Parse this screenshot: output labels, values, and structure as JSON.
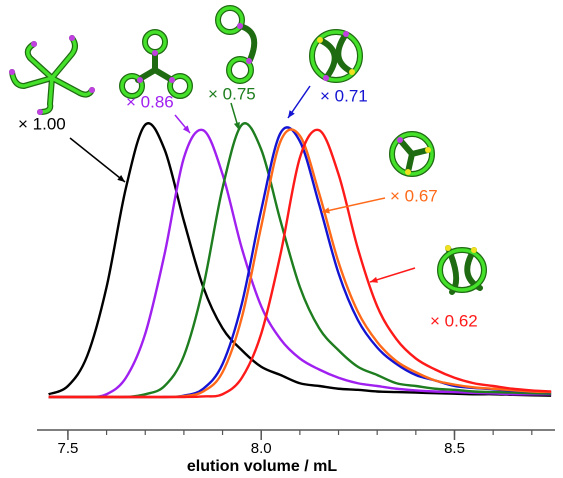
{
  "chart_data": {
    "type": "line",
    "x_label": "elution volume / mL",
    "x": [
      7.45,
      7.5,
      7.55,
      7.6,
      7.65,
      7.7,
      7.75,
      7.8,
      7.85,
      7.9,
      7.95,
      8.0,
      8.05,
      8.1,
      8.15,
      8.2,
      8.25,
      8.3,
      8.35,
      8.4,
      8.45,
      8.5,
      8.55,
      8.6,
      8.65,
      8.7,
      8.75
    ],
    "xlim": [
      7.42,
      8.76
    ],
    "xticks": [
      7.5,
      {
        "value": 8,
        "label": "8.0"
      },
      8.5
    ],
    "xminorticks": [
      7.5,
      7.6,
      7.7,
      7.8,
      7.9,
      8.0,
      8.1,
      8.2,
      8.3,
      8.4,
      8.5,
      8.6,
      8.7
    ],
    "ylim": [
      0,
      1
    ],
    "series": [
      {
        "name": "× 1.00",
        "color": "#000000",
        "values": [
          0.01,
          0.04,
          0.15,
          0.4,
          0.76,
          0.99,
          0.9,
          0.64,
          0.4,
          0.25,
          0.17,
          0.11,
          0.08,
          0.05,
          0.04,
          0.03,
          0.026,
          0.02,
          0.018,
          0.016,
          0.014,
          0.012,
          0.01,
          0.01,
          0.008,
          0.006,
          0.005
        ]
      },
      {
        "name": "× 0.86",
        "color": "#a020f0",
        "values": [
          0,
          0,
          0,
          0.01,
          0.07,
          0.23,
          0.52,
          0.87,
          0.97,
          0.81,
          0.54,
          0.33,
          0.21,
          0.14,
          0.1,
          0.07,
          0.05,
          0.04,
          0.03,
          0.024,
          0.02,
          0.018,
          0.015,
          0.013,
          0.01,
          0.01,
          0.01
        ]
      },
      {
        "name": "× 0.75",
        "color": "#1e7d1e",
        "values": [
          0,
          0,
          0,
          0,
          0,
          0.01,
          0.04,
          0.15,
          0.4,
          0.76,
          0.99,
          0.9,
          0.64,
          0.4,
          0.25,
          0.17,
          0.11,
          0.08,
          0.05,
          0.04,
          0.03,
          0.026,
          0.02,
          0.018,
          0.016,
          0.014,
          0.012
        ]
      },
      {
        "name": "× 0.71",
        "color": "#1414d2",
        "values": [
          0,
          0,
          0,
          0,
          0,
          0,
          0,
          0.005,
          0.03,
          0.12,
          0.34,
          0.68,
          0.96,
          0.93,
          0.7,
          0.45,
          0.28,
          0.18,
          0.12,
          0.08,
          0.06,
          0.04,
          0.033,
          0.028,
          0.023,
          0.02,
          0.017
        ]
      },
      {
        "name": "× 0.67",
        "color": "#ff6a1a",
        "values": [
          0,
          0,
          0,
          0,
          0,
          0,
          0,
          0.003,
          0.02,
          0.09,
          0.29,
          0.62,
          0.93,
          0.95,
          0.74,
          0.49,
          0.31,
          0.2,
          0.13,
          0.09,
          0.06,
          0.045,
          0.035,
          0.03,
          0.025,
          0.02,
          0.018
        ]
      },
      {
        "name": "× 0.62",
        "color": "#ff1a1a",
        "values": [
          0,
          0,
          0,
          0,
          0,
          0,
          0,
          0,
          0.002,
          0.01,
          0.07,
          0.23,
          0.52,
          0.87,
          0.97,
          0.81,
          0.54,
          0.33,
          0.21,
          0.14,
          0.1,
          0.07,
          0.05,
          0.04,
          0.03,
          0.024,
          0.02
        ]
      }
    ]
  }
}
